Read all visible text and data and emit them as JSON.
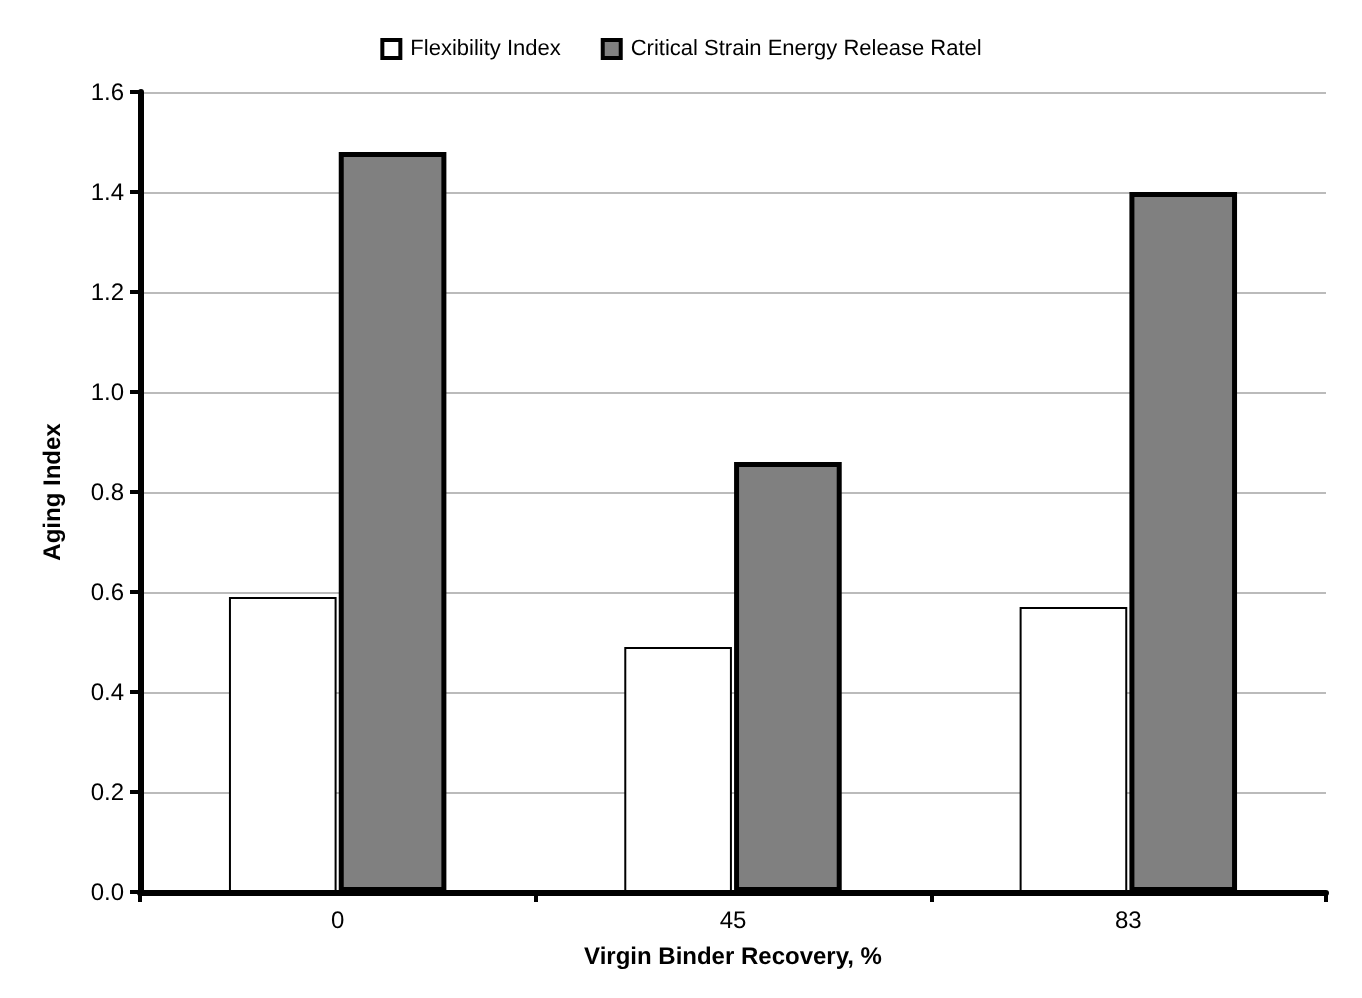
{
  "chart_data": {
    "type": "bar",
    "xlabel": "Virgin Binder Recovery, %",
    "ylabel": "Aging Index",
    "categories": [
      "0",
      "45",
      "83"
    ],
    "series": [
      {
        "name": "Flexibility Index",
        "color": "#ffffff",
        "values": [
          0.59,
          0.49,
          0.57
        ]
      },
      {
        "name": "Critical Strain Energy Release Ratel",
        "color": "#808080",
        "values": [
          1.48,
          0.86,
          1.4
        ]
      }
    ],
    "ylim": [
      0,
      1.6
    ],
    "yticks": [
      {
        "value": 0,
        "label": "0.0"
      },
      0.2,
      0.4,
      0.6,
      0.8,
      {
        "value": 1,
        "label": "1.0"
      },
      1.2,
      1.4,
      1.6
    ],
    "grid": "y",
    "legend": "top"
  }
}
